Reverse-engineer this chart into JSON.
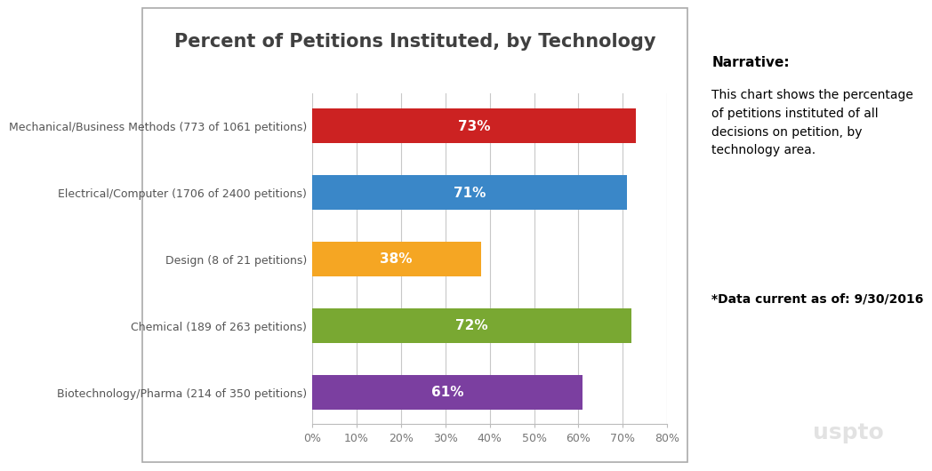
{
  "title": "Percent of Petitions Instituted, by Technology",
  "categories": [
    "Biotechnology/Pharma (214 of 350 petitions)",
    "Chemical (189 of 263 petitions)",
    "Design (8 of 21 petitions)",
    "Electrical/Computer (1706 of 2400 petitions)",
    "Mechanical/Business Methods (773 of 1061 petitions)"
  ],
  "values": [
    61,
    72,
    38,
    71,
    73
  ],
  "bar_colors": [
    "#7B3FA0",
    "#79A832",
    "#F5A623",
    "#3A87C8",
    "#CC2222"
  ],
  "labels": [
    "61%",
    "72%",
    "38%",
    "71%",
    "73%"
  ],
  "xlim": [
    0,
    80
  ],
  "xticks": [
    0,
    10,
    20,
    30,
    40,
    50,
    60,
    70,
    80
  ],
  "xtick_labels": [
    "0%",
    "10%",
    "20%",
    "30%",
    "40%",
    "50%",
    "60%",
    "70%",
    "80%"
  ],
  "narrative_title": "Narrative:",
  "narrative_text": "This chart shows the percentage\nof petitions instituted of all\ndecisions on petition, by\ntechnology area.",
  "data_note": "*Data current as of: 9/30/2016",
  "background_color": "#FFFFFF",
  "chart_bg_color": "#FFFFFF",
  "border_color": "#AAAAAA",
  "grid_color": "#C8C8C8",
  "title_fontsize": 15,
  "bar_label_fontsize": 11,
  "ytick_fontsize": 9,
  "xtick_fontsize": 9,
  "narrative_title_fontsize": 11,
  "narrative_text_fontsize": 10,
  "data_note_fontsize": 10,
  "title_color": "#404040",
  "ytick_color": "#555555",
  "xtick_color": "#777777"
}
